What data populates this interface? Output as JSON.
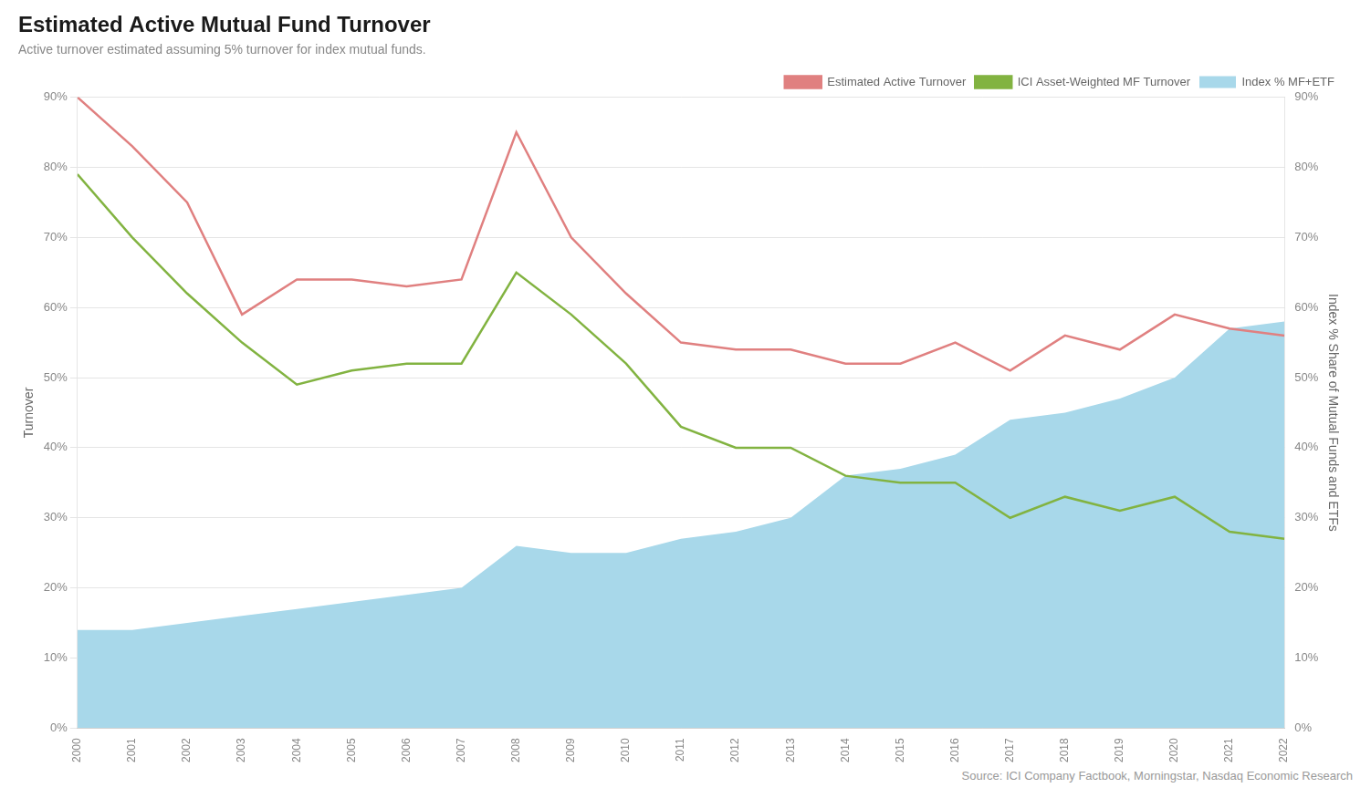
{
  "chart_data": {
    "type": "line",
    "title": "Estimated Active Mutual Fund Turnover",
    "subtitle": "Active turnover estimated assuming 5% turnover for index mutual funds.",
    "source": "Source: ICI Company Factbook, Morningstar, Nasdaq Economic Research",
    "y_label": "Turnover",
    "y2_label": "Index % Share of Mutual Funds and ETFs",
    "x": [
      2000,
      2001,
      2002,
      2003,
      2004,
      2005,
      2006,
      2007,
      2008,
      2009,
      2010,
      2011,
      2012,
      2013,
      2014,
      2015,
      2016,
      2017,
      2018,
      2019,
      2020,
      2021,
      2022
    ],
    "xlim": [
      2000,
      2022
    ],
    "xticks": [
      2000,
      2001,
      2002,
      2003,
      2004,
      2005,
      2006,
      2007,
      2008,
      2009,
      2010,
      2011,
      2012,
      2013,
      2014,
      2015,
      2016,
      2017,
      2018,
      2019,
      2020,
      2021,
      2022
    ],
    "series": [
      {
        "name": "Estimated Active Turnover",
        "type": "line",
        "color": "#e08080",
        "values": [
          0.9,
          0.83,
          0.75,
          0.59,
          0.64,
          0.64,
          0.63,
          0.64,
          0.85,
          0.7,
          0.62,
          0.55,
          0.54,
          0.54,
          0.52,
          0.52,
          0.55,
          0.51,
          0.56,
          0.54,
          0.59,
          0.57,
          0.56
        ]
      },
      {
        "name": "ICI Asset-Weighted MF Turnover",
        "type": "line",
        "color": "#82b341",
        "values": [
          0.79,
          0.7,
          0.62,
          0.55,
          0.49,
          0.51,
          0.52,
          0.52,
          0.65,
          0.59,
          0.52,
          0.43,
          0.4,
          0.4,
          0.36,
          0.35,
          0.35,
          0.3,
          0.33,
          0.31,
          0.33,
          0.28,
          0.27
        ]
      },
      {
        "name": "Index % MF+ETF",
        "type": "area",
        "color": "#a8d8ea",
        "axis": "y2",
        "values": [
          0.14,
          0.14,
          0.15,
          0.16,
          0.17,
          0.18,
          0.19,
          0.2,
          0.26,
          0.25,
          0.25,
          0.27,
          0.28,
          0.3,
          0.36,
          0.37,
          0.39,
          0.44,
          0.45,
          0.47,
          0.5,
          0.57,
          0.58
        ]
      }
    ],
    "ylim": [
      0,
      0.9
    ],
    "yticks": [
      {
        "value": 0,
        "label": "0%"
      },
      {
        "value": 0.1,
        "label": "10%"
      },
      {
        "value": 0.2,
        "label": "20%"
      },
      {
        "value": 0.3,
        "label": "30%"
      },
      {
        "value": 0.4,
        "label": "40%"
      },
      {
        "value": 0.5,
        "label": "50%"
      },
      {
        "value": 0.6,
        "label": "60%"
      },
      {
        "value": 0.7,
        "label": "70%"
      },
      {
        "value": 0.8,
        "label": "80%"
      },
      {
        "value": 0.9,
        "label": "90%"
      }
    ],
    "y2lim": [
      0,
      0.9
    ],
    "y2ticks": [
      {
        "value": 0,
        "label": "0%"
      },
      {
        "value": 0.1,
        "label": "10%"
      },
      {
        "value": 0.2,
        "label": "20%"
      },
      {
        "value": 0.3,
        "label": "30%"
      },
      {
        "value": 0.4,
        "label": "40%"
      },
      {
        "value": 0.5,
        "label": "50%"
      },
      {
        "value": 0.6,
        "label": "60%"
      },
      {
        "value": 0.7,
        "label": "70%"
      },
      {
        "value": 0.8,
        "label": "80%"
      },
      {
        "value": 0.9,
        "label": "90%"
      }
    ],
    "grid": "y",
    "legend": "upper right"
  }
}
